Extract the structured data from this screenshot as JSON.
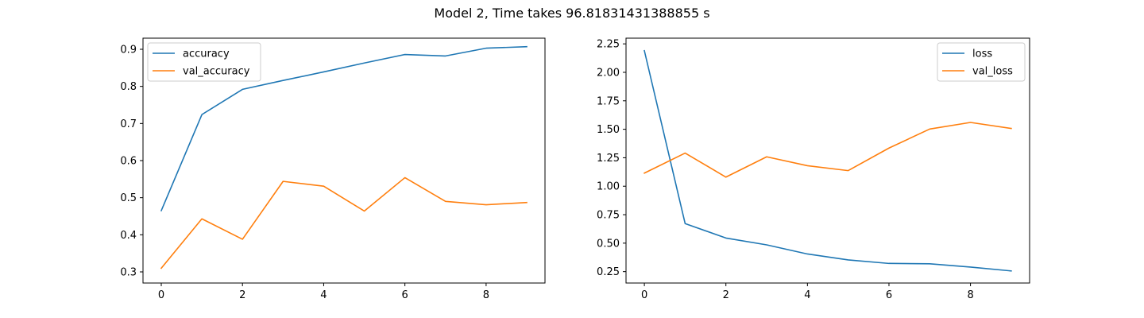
{
  "figure": {
    "title": "Model 2, Time takes 96.81831431388855 s"
  },
  "chart_data": [
    {
      "type": "line",
      "title": "",
      "xlabel": "",
      "ylabel": "",
      "xlim": [
        -0.45,
        9.45
      ],
      "ylim": [
        0.27,
        0.93
      ],
      "xticks": [
        0,
        2,
        4,
        6,
        8
      ],
      "yticks": [
        0.3,
        0.4,
        0.5,
        0.6,
        0.7,
        0.8,
        0.9
      ],
      "ytick_labels": [
        "0.3",
        "0.4",
        "0.5",
        "0.6",
        "0.7",
        "0.8",
        "0.9"
      ],
      "legend_position": "top-left",
      "grid": false,
      "x": [
        0,
        1,
        2,
        3,
        4,
        5,
        6,
        7,
        8,
        9
      ],
      "series": [
        {
          "name": "accuracy",
          "color": "#1f77b4",
          "values": [
            0.465,
            0.724,
            0.792,
            0.816,
            0.839,
            0.863,
            0.886,
            0.882,
            0.903,
            0.907
          ]
        },
        {
          "name": "val_accuracy",
          "color": "#ff7f0e",
          "values": [
            0.31,
            0.443,
            0.388,
            0.544,
            0.531,
            0.464,
            0.554,
            0.49,
            0.481,
            0.487
          ]
        }
      ]
    },
    {
      "type": "line",
      "title": "",
      "xlabel": "",
      "ylabel": "",
      "xlim": [
        -0.45,
        9.45
      ],
      "ylim": [
        0.15,
        2.3
      ],
      "xticks": [
        0,
        2,
        4,
        6,
        8
      ],
      "yticks": [
        0.25,
        0.5,
        0.75,
        1.0,
        1.25,
        1.5,
        1.75,
        2.0,
        2.25
      ],
      "ytick_labels": [
        "0.25",
        "0.50",
        "0.75",
        "1.00",
        "1.25",
        "1.50",
        "1.75",
        "2.00",
        "2.25"
      ],
      "legend_position": "top-right",
      "grid": false,
      "x": [
        0,
        1,
        2,
        3,
        4,
        5,
        6,
        7,
        8,
        9
      ],
      "series": [
        {
          "name": "loss",
          "color": "#1f77b4",
          "values": [
            2.19,
            0.672,
            0.545,
            0.485,
            0.405,
            0.353,
            0.322,
            0.319,
            0.29,
            0.256
          ]
        },
        {
          "name": "val_loss",
          "color": "#ff7f0e",
          "values": [
            1.115,
            1.291,
            1.08,
            1.258,
            1.18,
            1.137,
            1.335,
            1.502,
            1.56,
            1.507
          ]
        }
      ]
    }
  ]
}
